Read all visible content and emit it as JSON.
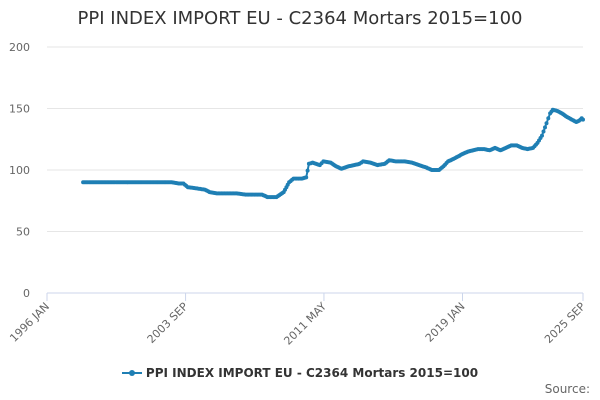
{
  "title": "PPI INDEX IMPORT EU - C2364 Mortars 2015=100",
  "source_label": "Source:",
  "colors": {
    "series": "#1f7fb4",
    "grid": "#e6e6e6",
    "axis": "#ccd6eb",
    "text": "#666666"
  },
  "chart_data": {
    "type": "line",
    "title": "PPI INDEX IMPORT EU - C2364 Mortars 2015=100",
    "ylim": [
      0,
      200
    ],
    "yticks": [
      0,
      50,
      100,
      150,
      200
    ],
    "xlim": [
      1996.0,
      2025.67
    ],
    "xticks": [
      {
        "label": "1996 JAN",
        "x": 1996.0
      },
      {
        "label": "2003 SEP",
        "x": 2003.67
      },
      {
        "label": "2011 MAY",
        "x": 2011.33
      },
      {
        "label": "2019 JAN",
        "x": 2019.0
      },
      {
        "label": "2025 SEP",
        "x": 2025.67
      }
    ],
    "grid": true,
    "legend_position": "bottom-center",
    "series": [
      {
        "name": "PPI INDEX IMPORT EU - C2364 Mortars 2015=100",
        "points": [
          [
            1998.0,
            90
          ],
          [
            1999.0,
            90
          ],
          [
            2000.0,
            90
          ],
          [
            2001.0,
            90
          ],
          [
            2002.0,
            90
          ],
          [
            2002.9,
            90
          ],
          [
            2003.3,
            89
          ],
          [
            2003.55,
            89
          ],
          [
            2003.8,
            86
          ],
          [
            2004.3,
            85
          ],
          [
            2004.75,
            84
          ],
          [
            2005.0,
            82
          ],
          [
            2005.4,
            81
          ],
          [
            2006.0,
            81
          ],
          [
            2006.5,
            81
          ],
          [
            2007.0,
            80
          ],
          [
            2007.4,
            80
          ],
          [
            2007.9,
            80
          ],
          [
            2008.2,
            78
          ],
          [
            2008.7,
            78
          ],
          [
            2009.1,
            82
          ],
          [
            2009.4,
            90
          ],
          [
            2009.65,
            93
          ],
          [
            2010.1,
            93
          ],
          [
            2010.35,
            94
          ],
          [
            2010.5,
            105
          ],
          [
            2010.7,
            106
          ],
          [
            2011.1,
            104
          ],
          [
            2011.3,
            107
          ],
          [
            2011.7,
            106
          ],
          [
            2012.0,
            103
          ],
          [
            2012.3,
            101
          ],
          [
            2012.7,
            103
          ],
          [
            2013.0,
            104
          ],
          [
            2013.3,
            105
          ],
          [
            2013.5,
            107
          ],
          [
            2013.9,
            106
          ],
          [
            2014.3,
            104
          ],
          [
            2014.7,
            105
          ],
          [
            2014.95,
            108
          ],
          [
            2015.3,
            107
          ],
          [
            2015.8,
            107
          ],
          [
            2016.2,
            106
          ],
          [
            2016.6,
            104
          ],
          [
            2017.0,
            102
          ],
          [
            2017.3,
            100
          ],
          [
            2017.7,
            100
          ],
          [
            2017.95,
            103
          ],
          [
            2018.2,
            107
          ],
          [
            2018.5,
            109
          ],
          [
            2018.75,
            111
          ],
          [
            2019.0,
            113
          ],
          [
            2019.3,
            115
          ],
          [
            2019.6,
            116
          ],
          [
            2019.85,
            117
          ],
          [
            2020.2,
            117
          ],
          [
            2020.5,
            116
          ],
          [
            2020.8,
            118
          ],
          [
            2021.1,
            116
          ],
          [
            2021.4,
            118
          ],
          [
            2021.7,
            120
          ],
          [
            2022.0,
            120
          ],
          [
            2022.3,
            118
          ],
          [
            2022.6,
            117
          ],
          [
            2022.9,
            118
          ],
          [
            2023.15,
            122
          ],
          [
            2023.4,
            128
          ],
          [
            2023.65,
            138
          ],
          [
            2023.85,
            146
          ],
          [
            2024.0,
            149
          ],
          [
            2024.25,
            148
          ],
          [
            2024.5,
            146
          ],
          [
            2024.8,
            143
          ],
          [
            2025.05,
            141
          ],
          [
            2025.3,
            139
          ],
          [
            2025.45,
            140
          ],
          [
            2025.6,
            142
          ],
          [
            2025.67,
            141
          ]
        ]
      }
    ]
  }
}
